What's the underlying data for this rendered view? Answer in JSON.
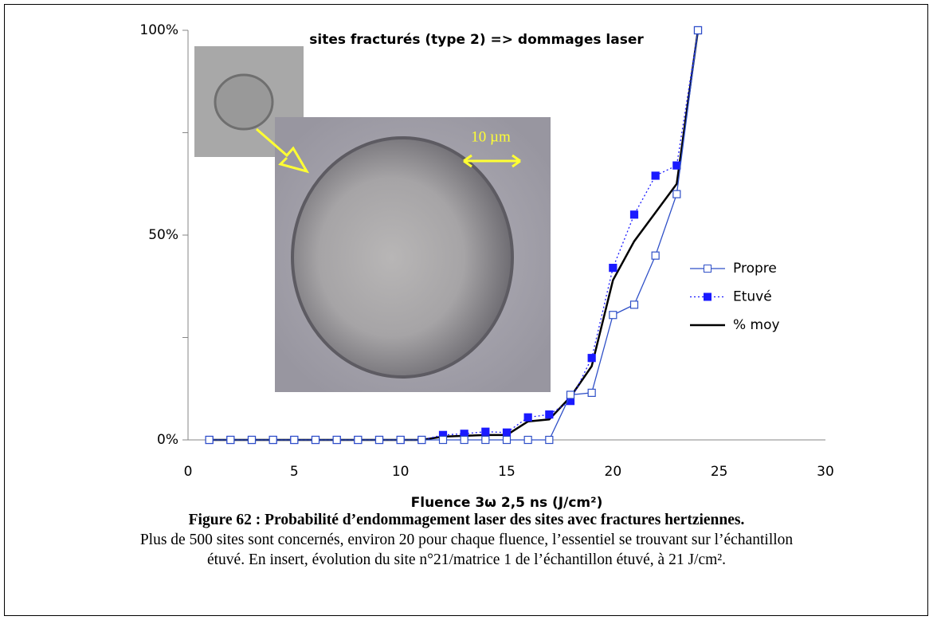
{
  "chart_data": {
    "type": "line",
    "title": "sites fracturés (type 2) => dommages laser",
    "x_label": "Fluence 3ω 2,5 ns (J/cm²)",
    "x": [
      1,
      2,
      3,
      4,
      5,
      6,
      7,
      8,
      9,
      10,
      11,
      12,
      13,
      14,
      15,
      16,
      17,
      18,
      19,
      20,
      21,
      22,
      23,
      24
    ],
    "series": [
      {
        "name": "Propre",
        "color": "#2e4fc7",
        "marker": "open-square",
        "dash": "solid",
        "values": [
          0,
          0,
          0,
          0,
          0,
          0,
          0,
          0,
          0,
          0,
          0,
          0,
          0,
          0,
          0,
          0,
          0,
          11,
          11.5,
          30.5,
          33,
          45,
          60,
          100
        ]
      },
      {
        "name": "Etuvé",
        "color": "#1a1aff",
        "marker": "filled-square",
        "dash": "dotted",
        "values": [
          0,
          0,
          0,
          0,
          0,
          0,
          0,
          0,
          0,
          0,
          0,
          1.2,
          1.5,
          2,
          1.8,
          5.5,
          6.2,
          9.5,
          20,
          42,
          55,
          64.5,
          67,
          100
        ]
      },
      {
        "name": "% moy",
        "color": "#000000",
        "marker": "none",
        "dash": "solid",
        "values": [
          0,
          0,
          0,
          0,
          0,
          0,
          0,
          0,
          0,
          0,
          0,
          0.8,
          1,
          1.2,
          1.2,
          4.5,
          5,
          10.5,
          18,
          39,
          48.5,
          55.5,
          62.5,
          100
        ]
      }
    ],
    "xlim": [
      0,
      30
    ],
    "xticks": [
      0,
      5,
      10,
      15,
      20,
      25,
      30
    ],
    "ylim": [
      0,
      100
    ],
    "yticks": [
      {
        "value": 0,
        "label": "0%"
      },
      {
        "value": 25,
        "label": null
      },
      {
        "value": 50,
        "label": "50%"
      },
      {
        "value": 75,
        "label": null
      },
      {
        "value": 100,
        "label": "100%"
      }
    ],
    "legend": "right",
    "inset_scale_label": "10 µm"
  },
  "caption": {
    "title": "Figure 62 : Probabilité d’endommagement laser des sites avec fractures hertziennes.",
    "lines": [
      "Plus de 500 sites sont concernés, environ 20 pour chaque fluence, l’essentiel se trouvant sur l’échantillon",
      "étuvé. En insert, évolution du site n°21/matrice 1 de l’échantillon étuvé, à 21 J/cm²."
    ]
  }
}
